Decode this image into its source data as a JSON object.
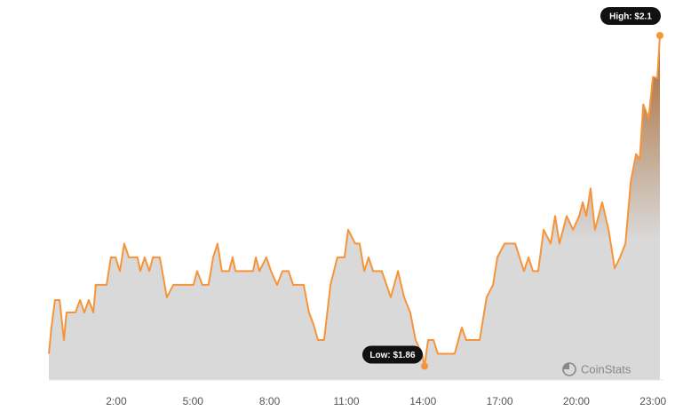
{
  "chart_data": {
    "type": "area",
    "x": [
      -0.64,
      -0.54,
      -0.4,
      -0.22,
      -0.05,
      0.05,
      0.4,
      0.58,
      0.75,
      0.92,
      1.1,
      1.2,
      1.62,
      1.79,
      1.97,
      2.14,
      2.31,
      2.49,
      2.83,
      2.94,
      3.11,
      3.29,
      3.43,
      3.7,
      3.98,
      4.23,
      5.02,
      5.16,
      5.37,
      5.61,
      5.79,
      5.96,
      6.13,
      6.41,
      6.55,
      6.66,
      7.35,
      7.46,
      7.6,
      7.87,
      8.05,
      8.29,
      8.5,
      8.74,
      8.92,
      9.33,
      9.54,
      9.72,
      9.89,
      10.13,
      10.38,
      10.65,
      10.93,
      11.07,
      11.35,
      11.52,
      11.7,
      11.87,
      12.05,
      12.39,
      12.74,
      13.02,
      13.26,
      13.5,
      13.71,
      13.96,
      14.06,
      14.2,
      14.41,
      14.58,
      15.24,
      15.52,
      15.69,
      16.22,
      16.49,
      16.74,
      16.91,
      17.19,
      17.61,
      17.78,
      17.95,
      18.13,
      18.3,
      18.51,
      18.72,
      19.0,
      19.17,
      19.34,
      19.62,
      19.87,
      20.11,
      20.25,
      20.39,
      20.56,
      20.73,
      21.01,
      21.26,
      21.5,
      21.71,
      21.92,
      22.13,
      22.34,
      22.48,
      22.62,
      22.83,
      23.0,
      23.17,
      23.27
    ],
    "values": [
      1.869,
      1.888,
      1.908,
      1.908,
      1.879,
      1.899,
      1.899,
      1.908,
      1.899,
      1.908,
      1.899,
      1.919,
      1.919,
      1.939,
      1.939,
      1.929,
      1.949,
      1.939,
      1.939,
      1.929,
      1.939,
      1.929,
      1.939,
      1.939,
      1.91,
      1.919,
      1.919,
      1.929,
      1.919,
      1.919,
      1.939,
      1.949,
      1.929,
      1.929,
      1.939,
      1.929,
      1.929,
      1.939,
      1.929,
      1.939,
      1.929,
      1.919,
      1.929,
      1.929,
      1.919,
      1.919,
      1.899,
      1.89,
      1.879,
      1.879,
      1.919,
      1.939,
      1.939,
      1.959,
      1.949,
      1.949,
      1.929,
      1.939,
      1.929,
      1.929,
      1.91,
      1.929,
      1.91,
      1.899,
      1.879,
      1.869,
      1.86,
      1.879,
      1.879,
      1.869,
      1.869,
      1.888,
      1.879,
      1.879,
      1.91,
      1.919,
      1.939,
      1.949,
      1.949,
      1.939,
      1.929,
      1.939,
      1.929,
      1.929,
      1.959,
      1.949,
      1.969,
      1.949,
      1.969,
      1.959,
      1.969,
      1.979,
      1.969,
      1.989,
      1.959,
      1.979,
      1.959,
      1.931,
      1.939,
      1.949,
      1.994,
      2.014,
      2.01,
      2.05,
      2.04,
      2.07,
      2.069,
      2.1
    ],
    "color": "#f7943a",
    "xlim": [
      -0.64,
      23.27
    ],
    "ylim": [
      1.85,
      2.1
    ],
    "xticks": [
      {
        "value": 2,
        "label": "2:00"
      },
      {
        "value": 5,
        "label": "5:00"
      },
      {
        "value": 8,
        "label": "8:00"
      },
      {
        "value": 11,
        "label": "11:00"
      },
      {
        "value": 14,
        "label": "14:00"
      },
      {
        "value": 17,
        "label": "17:00"
      },
      {
        "value": 20,
        "label": "20:00"
      },
      {
        "value": 23,
        "label": "23:00"
      }
    ],
    "annotations": [
      {
        "text": "High: $2.1",
        "value": 2.1,
        "x": 23.27
      },
      {
        "text": "Low: $1.86",
        "value": 1.86,
        "x": 14.06
      }
    ],
    "watermark": "CoinStats"
  }
}
